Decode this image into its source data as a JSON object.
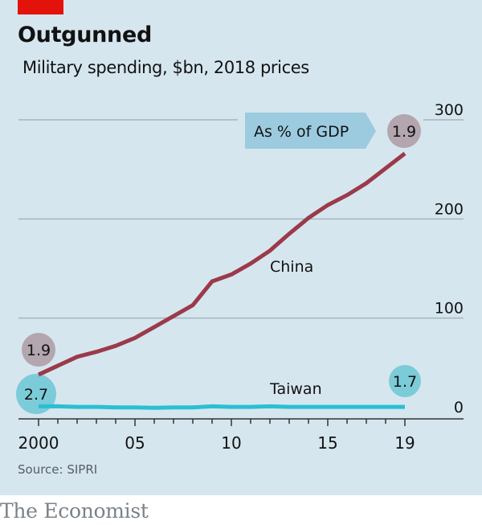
{
  "header": {
    "title": "Outgunned",
    "subtitle": "Military spending, $bn, 2018 prices"
  },
  "footer": {
    "source": "Source: SIPRI",
    "brand": "The Economist"
  },
  "colors": {
    "background": "#d6e6ef",
    "brand_red": "#e3120b",
    "china": "#9b3a4a",
    "taiwan": "#2bbfd2",
    "china_gdp_bubble": "#b3a6ae",
    "taiwan_gdp_bubble": "#7ccbd8",
    "gdp_label_box": "#9ccbe0",
    "gridline": "#a6b4bc",
    "axis": "#333333"
  },
  "chart_data": {
    "type": "line",
    "title": "Outgunned",
    "subtitle": "Military spending, $bn, 2018 prices",
    "xlabel": "",
    "ylabel": "$bn",
    "x": [
      2000,
      2001,
      2002,
      2003,
      2004,
      2005,
      2006,
      2007,
      2008,
      2009,
      2010,
      2011,
      2012,
      2013,
      2014,
      2015,
      2016,
      2017,
      2018,
      2019
    ],
    "x_tick_values": [
      2000,
      2005,
      2010,
      2015,
      2019
    ],
    "x_tick_labels": [
      "2000",
      "05",
      "10",
      "15",
      "19"
    ],
    "xlim": [
      2000,
      2019
    ],
    "ylim": [
      0,
      300
    ],
    "y_ticks": [
      0,
      100,
      200,
      300
    ],
    "y_tick_labels": [
      "0",
      "100",
      "200",
      "300"
    ],
    "y_axis_side": "right",
    "grid": true,
    "series": [
      {
        "name": "China",
        "values": [
          43,
          52,
          61,
          66,
          72,
          80,
          91,
          102,
          113,
          137,
          144,
          155,
          168,
          185,
          201,
          214,
          224,
          236,
          251,
          266
        ],
        "gdp_share_start": "1.9",
        "gdp_share_end": "1.9"
      },
      {
        "name": "Taiwan",
        "values": [
          11,
          11,
          10.5,
          10.5,
          10,
          10,
          9.5,
          10,
          10,
          11,
          10.5,
          10.5,
          11,
          10.5,
          10.5,
          10.5,
          10.5,
          10.5,
          10.5,
          10.5
        ],
        "gdp_share_start": "2.7",
        "gdp_share_end": "1.7"
      }
    ],
    "annotations": {
      "gdp_label": "As % of GDP",
      "china_label": "China",
      "taiwan_label": "Taiwan"
    },
    "source": "Source: SIPRI"
  }
}
